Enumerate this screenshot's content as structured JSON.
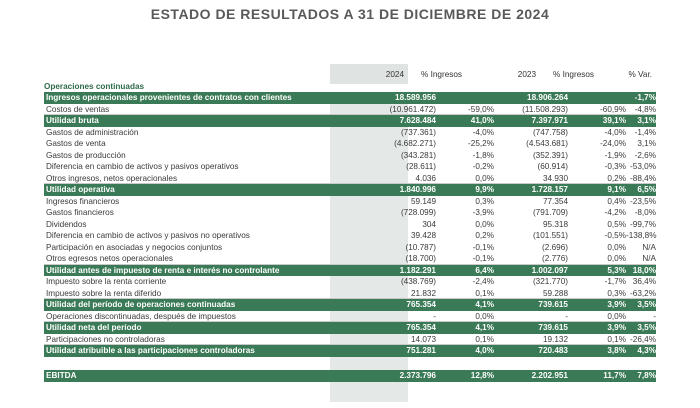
{
  "title": "ESTADO DE RESULTADOS A 31 DE DICIEMBRE DE 2024",
  "headers": {
    "y2024": "2024",
    "pct2024": "% Ingresos",
    "y2023": "2023",
    "pct2023": "% Ingresos",
    "var": "% Var."
  },
  "section": "Operaciones continuadas",
  "colors": {
    "green": "#3a7a56",
    "shade": "#e4e8e6"
  },
  "rows": [
    {
      "type": "g",
      "label": "Ingresos operacionales provenientes de contratos con clientes",
      "v24": "18.589.956",
      "p24": "",
      "v23": "18.906.264",
      "p23": "",
      "var": "-1,7%"
    },
    {
      "type": "u",
      "label": "Costos de ventas",
      "v24": "(10.961.472)",
      "p24": "-59,0%",
      "v23": "(11.508.293)",
      "p23": "-60,9%",
      "var": "-4,8%"
    },
    {
      "type": "g",
      "label": "Utilidad bruta",
      "v24": "7.628.484",
      "p24": "41,0%",
      "v23": "7.397.971",
      "p23": "39,1%",
      "var": "3,1%"
    },
    {
      "type": "n",
      "label": "Gastos de administración",
      "v24": "(737.361)",
      "p24": "-4,0%",
      "v23": "(747.758)",
      "p23": "-4,0%",
      "var": "-1,4%"
    },
    {
      "type": "n",
      "label": "Gastos de venta",
      "v24": "(4.682.271)",
      "p24": "-25,2%",
      "v23": "(4.543.681)",
      "p23": "-24,0%",
      "var": "3,1%"
    },
    {
      "type": "n",
      "label": "Gastos de producción",
      "v24": "(343.281)",
      "p24": "-1,8%",
      "v23": "(352.391)",
      "p23": "-1,9%",
      "var": "-2,6%"
    },
    {
      "type": "n",
      "label": "Diferencia en cambio de activos y pasivos operativos",
      "v24": "(28.611)",
      "p24": "-0,2%",
      "v23": "(60.914)",
      "p23": "-0,3%",
      "var": "-53,0%"
    },
    {
      "type": "u",
      "label": "Otros ingresos, netos operacionales",
      "v24": "4.036",
      "p24": "0,0%",
      "v23": "34.930",
      "p23": "0,2%",
      "var": "-88,4%"
    },
    {
      "type": "g",
      "label": "Utilidad operativa",
      "v24": "1.840.996",
      "p24": "9,9%",
      "v23": "1.728.157",
      "p23": "9,1%",
      "var": "6,5%"
    },
    {
      "type": "n",
      "label": "Ingresos financieros",
      "v24": "59.149",
      "p24": "0,3%",
      "v23": "77.354",
      "p23": "0,4%",
      "var": "-23,5%"
    },
    {
      "type": "n",
      "label": "Gastos financieros",
      "v24": "(728.099)",
      "p24": "-3,9%",
      "v23": "(791.709)",
      "p23": "-4,2%",
      "var": "-8,0%"
    },
    {
      "type": "n",
      "label": "Dividendos",
      "v24": "304",
      "p24": "0,0%",
      "v23": "95.318",
      "p23": "0,5%",
      "var": "-99,7%"
    },
    {
      "type": "n",
      "label": "Diferencia en cambio de activos y pasivos no operativos",
      "v24": "39.428",
      "p24": "0,2%",
      "v23": "(101.551)",
      "p23": "-0,5%",
      "var": "-138,8%"
    },
    {
      "type": "n",
      "label": "Participación en asociadas y negocios conjuntos",
      "v24": "(10.787)",
      "p24": "-0,1%",
      "v23": "(2.696)",
      "p23": "0,0%",
      "var": "N/A"
    },
    {
      "type": "u",
      "label": "Otros egresos netos operacionales",
      "v24": "(18.700)",
      "p24": "-0,1%",
      "v23": "(2.776)",
      "p23": "0,0%",
      "var": "N/A"
    },
    {
      "type": "g",
      "label": "Utilidad antes de impuesto de renta e interés no controlante",
      "v24": "1.182.291",
      "p24": "6,4%",
      "v23": "1.002.097",
      "p23": "5,3%",
      "var": "18,0%"
    },
    {
      "type": "n",
      "label": "Impuesto sobre la renta corriente",
      "v24": "(438.769)",
      "p24": "-2,4%",
      "v23": "(321.770)",
      "p23": "-1,7%",
      "var": "36,4%"
    },
    {
      "type": "u",
      "label": "Impuesto sobre la renta diferido",
      "v24": "21.832",
      "p24": "0,1%",
      "v23": "59.288",
      "p23": "0,3%",
      "var": "-63,2%"
    },
    {
      "type": "g",
      "label": "Utilidad del período de operaciones continuadas",
      "v24": "765.354",
      "p24": "4,1%",
      "v23": "739.615",
      "p23": "3,9%",
      "var": "3,5%"
    },
    {
      "type": "u",
      "label": "Operaciones discontinuadas, después de impuestos",
      "v24": "-",
      "p24": "0,0%",
      "v23": "-",
      "p23": "0,0%",
      "var": "-"
    },
    {
      "type": "g",
      "label": "Utilidad neta del período",
      "v24": "765.354",
      "p24": "4,1%",
      "v23": "739.615",
      "p23": "3,9%",
      "var": "3,5%"
    },
    {
      "type": "u",
      "label": "Participaciones no controladoras",
      "v24": "14.073",
      "p24": "0,1%",
      "v23": "19.132",
      "p23": "0,1%",
      "var": "-26,4%"
    },
    {
      "type": "g",
      "label": "Utilidad atribuible a las participaciones controladoras",
      "v24": "751.281",
      "p24": "4,0%",
      "v23": "720.483",
      "p23": "3,8%",
      "var": "4,3%"
    },
    {
      "type": "spacer",
      "label": "",
      "v24": "",
      "p24": "",
      "v23": "",
      "p23": "",
      "var": ""
    },
    {
      "type": "g",
      "label": "EBITDA",
      "v24": "2.373.796",
      "p24": "12,8%",
      "v23": "2.202.951",
      "p23": "11,7%",
      "var": "7,8%"
    }
  ]
}
